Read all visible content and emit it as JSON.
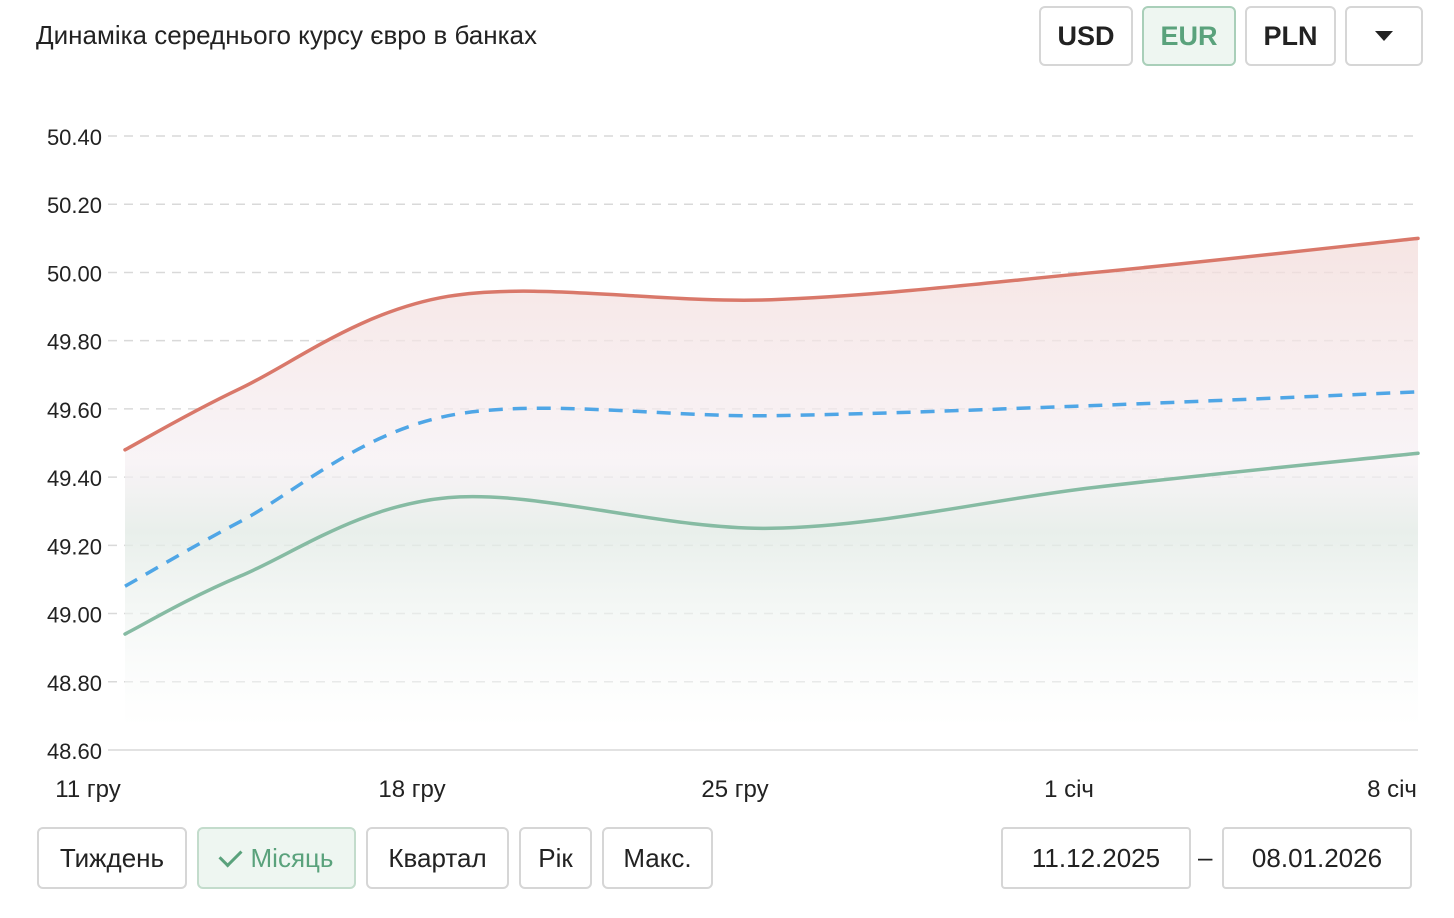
{
  "title": "Динаміка середнього курсу євро в банках",
  "currency_buttons": [
    {
      "label": "USD",
      "active": false
    },
    {
      "label": "EUR",
      "active": true
    },
    {
      "label": "PLN",
      "active": false
    }
  ],
  "more_icon": "caret-down-icon",
  "period_buttons": [
    {
      "label": "Тиждень",
      "active": false
    },
    {
      "label": "Місяць",
      "active": true
    },
    {
      "label": "Квартал",
      "active": false
    },
    {
      "label": "Рік",
      "active": false
    },
    {
      "label": "Макс.",
      "active": false
    }
  ],
  "date_range": {
    "from": "11.12.2025",
    "separator": "–",
    "to": "08.01.2026"
  },
  "colors": {
    "sell": "#d9786a",
    "buy": "#86bba3",
    "mid": "#4fa6e6",
    "active_accent": "#5aa27c"
  },
  "chart_data": {
    "type": "line",
    "title": "Динаміка середнього курсу євро в банках",
    "x_ticks": [
      "11 гру",
      "18 гру",
      "25 гру",
      "1 січ",
      "8 січ"
    ],
    "x": [
      0,
      2.5,
      7,
      14,
      21,
      28
    ],
    "ylim": [
      48.6,
      50.4
    ],
    "y_ticks": [
      "48.60",
      "48.80",
      "49.00",
      "49.20",
      "49.40",
      "49.60",
      "49.80",
      "50.00",
      "50.20",
      "50.40"
    ],
    "grid": true,
    "series": [
      {
        "key": "sell",
        "style": "solid",
        "values": [
          49.48,
          49.66,
          49.93,
          49.92,
          50.0,
          50.1
        ]
      },
      {
        "key": "mid",
        "style": "dashed",
        "values": [
          49.08,
          49.27,
          49.58,
          49.58,
          49.61,
          49.65
        ]
      },
      {
        "key": "buy",
        "style": "solid",
        "values": [
          48.94,
          49.11,
          49.34,
          49.25,
          49.37,
          49.47
        ]
      }
    ]
  }
}
